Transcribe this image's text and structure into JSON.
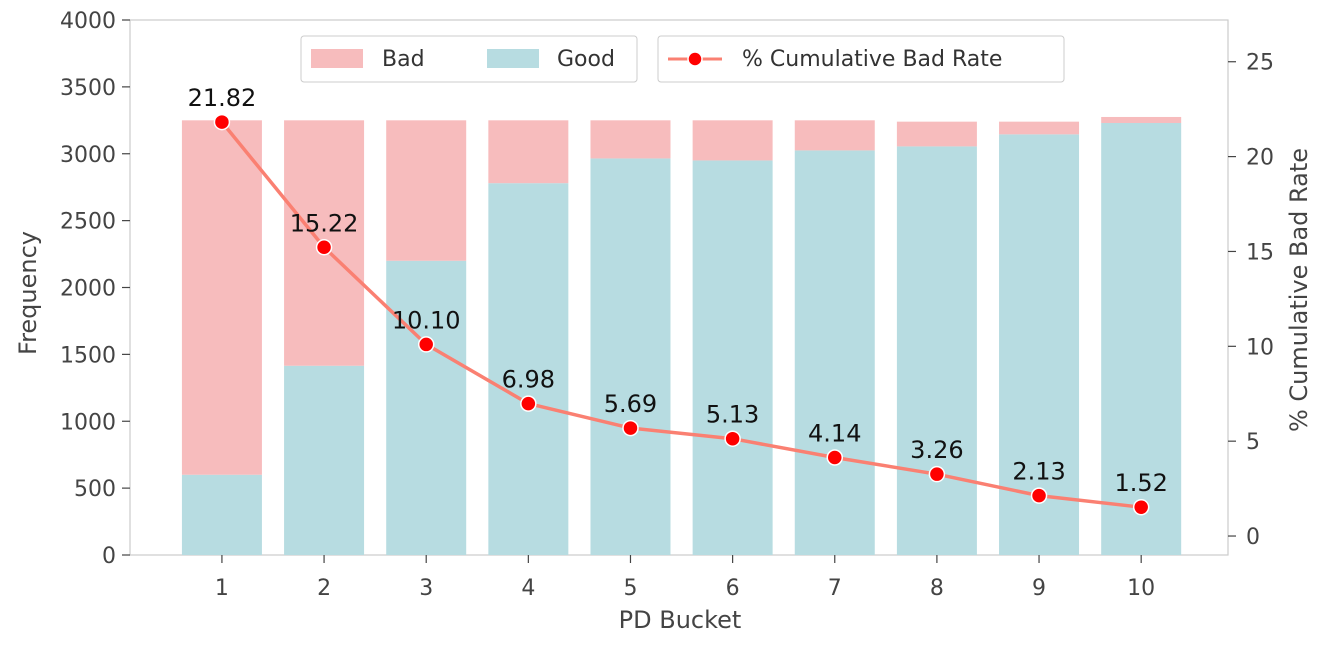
{
  "chart_data": {
    "type": "bar",
    "stacked": true,
    "categories": [
      "1",
      "2",
      "3",
      "4",
      "5",
      "6",
      "7",
      "8",
      "9",
      "10"
    ],
    "xlabel": "PD Bucket",
    "ylabel": "Frequency",
    "y2label": "% Cumulative Bad Rate",
    "ylim": [
      0,
      4000
    ],
    "y2lim": [
      -1,
      27.2
    ],
    "yticks": [
      0,
      500,
      1000,
      1500,
      2000,
      2500,
      3000,
      3500,
      4000
    ],
    "y2ticks": [
      0,
      5,
      10,
      15,
      20,
      25
    ],
    "grid": false,
    "legend_position": "top-center",
    "series": [
      {
        "name": "Good",
        "kind": "bar",
        "color": "#b7dce1",
        "values": [
          600,
          1415,
          2200,
          2780,
          2965,
          2950,
          3025,
          3055,
          3145,
          3230
        ]
      },
      {
        "name": "Bad",
        "kind": "bar",
        "color": "#f7bcbd",
        "values": [
          2650,
          1835,
          1050,
          470,
          285,
          300,
          225,
          185,
          95,
          45
        ]
      },
      {
        "name": "% Cumulative Bad Rate",
        "kind": "line",
        "axis": "right",
        "color": "#fa8072",
        "marker_color": "#ff0000",
        "values": [
          21.82,
          15.22,
          10.1,
          6.98,
          5.69,
          5.13,
          4.14,
          3.26,
          2.13,
          1.52
        ],
        "labels": [
          "21.82",
          "15.22",
          "10.10",
          "6.98",
          "5.69",
          "5.13",
          "4.14",
          "3.26",
          "2.13",
          "1.52"
        ]
      }
    ]
  }
}
